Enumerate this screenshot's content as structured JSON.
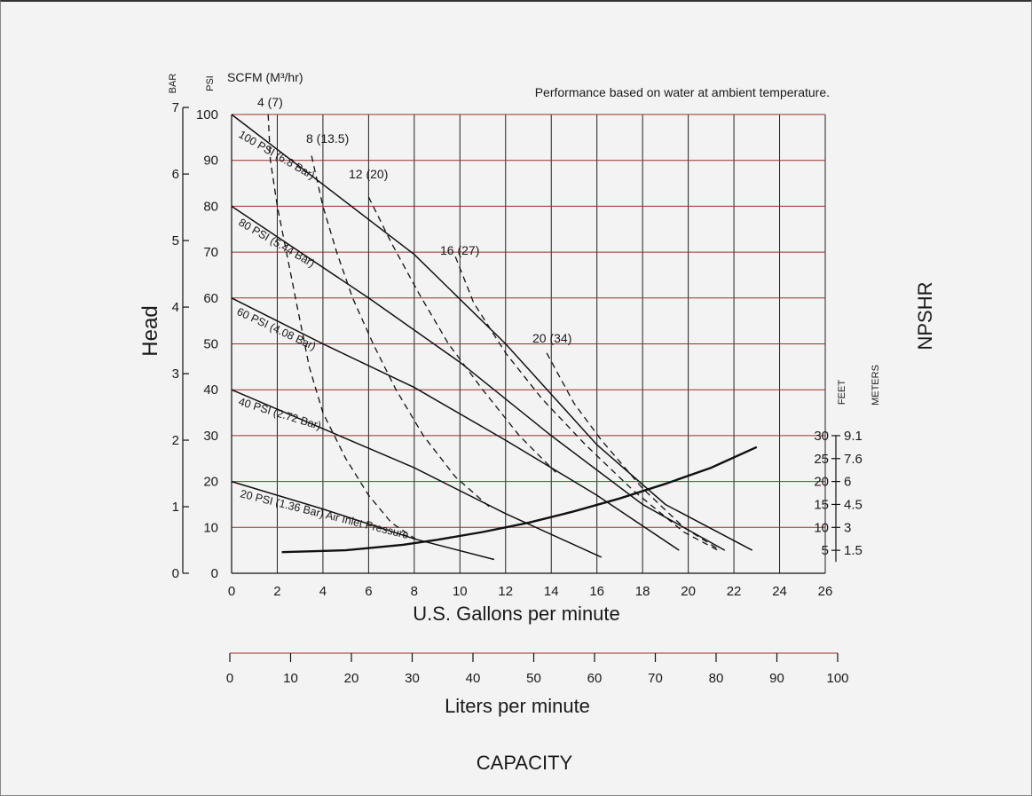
{
  "chart_data": {
    "type": "line",
    "note": "Performance based on water at ambient temperature.",
    "xlabel": "U.S. Gallons per minute",
    "x2label": "Liters per minute",
    "footer": "CAPACITY",
    "ylabel": "Head",
    "y2label": "NPSHR",
    "unit_bar": "BAR",
    "unit_psi": "PSI",
    "unit_scfm": "SCFM (M³/hr)",
    "unit_feet": "FEET",
    "unit_meters": "METERS",
    "xlim": [
      0,
      26
    ],
    "ylim": [
      0,
      100
    ],
    "x_ticks": [
      0,
      2,
      4,
      6,
      8,
      10,
      12,
      14,
      16,
      18,
      20,
      22,
      24,
      26
    ],
    "y_ticks": [
      0,
      10,
      20,
      30,
      40,
      50,
      60,
      70,
      80,
      90,
      100
    ],
    "bar_ticks": [
      0,
      1,
      2,
      3,
      4,
      5,
      6,
      7
    ],
    "lpm_ticks": [
      0,
      10,
      20,
      30,
      40,
      50,
      60,
      70,
      80,
      90,
      100
    ],
    "npshr_ticks": [
      {
        "feet": "30",
        "meters": "9.1",
        "psi": 30
      },
      {
        "feet": "25",
        "meters": "7.6",
        "psi": 25
      },
      {
        "feet": "20",
        "meters": "6",
        "psi": 20
      },
      {
        "feet": "15",
        "meters": "4.5",
        "psi": 15
      },
      {
        "feet": "10",
        "meters": "3",
        "psi": 10
      },
      {
        "feet": "5",
        "meters": "1.5",
        "psi": 5
      }
    ],
    "pressure_curves": [
      {
        "name": "100 PSI (6.8 Bar)",
        "points": [
          [
            0,
            100
          ],
          [
            8,
            69.5
          ],
          [
            12,
            50
          ],
          [
            16,
            28
          ],
          [
            19,
            15
          ],
          [
            22.8,
            5
          ]
        ]
      },
      {
        "name": "80 PSI (5.44 Bar)",
        "points": [
          [
            0,
            80
          ],
          [
            6,
            60
          ],
          [
            10,
            46
          ],
          [
            14,
            30
          ],
          [
            18,
            15
          ],
          [
            21.6,
            5
          ]
        ]
      },
      {
        "name": "60 PSI (4.08 Bar)",
        "points": [
          [
            0,
            60
          ],
          [
            4,
            50
          ],
          [
            8,
            40.5
          ],
          [
            12,
            29
          ],
          [
            16,
            17
          ],
          [
            19.6,
            5
          ]
        ]
      },
      {
        "name": "40 PSI (2.72 Bar)",
        "points": [
          [
            0,
            40
          ],
          [
            4,
            31.5
          ],
          [
            8,
            23
          ],
          [
            12,
            13
          ],
          [
            16.2,
            3.5
          ]
        ]
      },
      {
        "name": "20 PSI (1.36 Bar) Air Inlet Pressure",
        "points": [
          [
            0,
            20
          ],
          [
            4,
            14
          ],
          [
            8,
            7.5
          ],
          [
            11.5,
            3
          ]
        ]
      }
    ],
    "air_curves": [
      {
        "name": "4 (7)",
        "points": [
          [
            1.6,
            100
          ],
          [
            1.7,
            90
          ],
          [
            2.0,
            80
          ],
          [
            2.4,
            70
          ],
          [
            2.8,
            60
          ],
          [
            3.4,
            45
          ],
          [
            4.0,
            35
          ],
          [
            5.0,
            25
          ],
          [
            6.0,
            17
          ],
          [
            7.0,
            11
          ],
          [
            8.2,
            7
          ]
        ]
      },
      {
        "name": "8 (13.5)",
        "points": [
          [
            3.5,
            91
          ],
          [
            4.0,
            80
          ],
          [
            4.6,
            70
          ],
          [
            5.3,
            60
          ],
          [
            6.2,
            50
          ],
          [
            7.2,
            40
          ],
          [
            8.4,
            30
          ],
          [
            9.8,
            21
          ],
          [
            11.4,
            14
          ]
        ]
      },
      {
        "name": "12 (20)",
        "points": [
          [
            6.0,
            82
          ],
          [
            7.0,
            72
          ],
          [
            8.2,
            61
          ],
          [
            9.5,
            50
          ],
          [
            11.0,
            40
          ],
          [
            12.6,
            30
          ],
          [
            14.2,
            22
          ]
        ]
      },
      {
        "name": "16 (27)",
        "points": [
          [
            9.8,
            69
          ],
          [
            10.6,
            59
          ],
          [
            12.0,
            48
          ],
          [
            13.6,
            38
          ],
          [
            15.5,
            28
          ],
          [
            17.6,
            18
          ],
          [
            19.8,
            9
          ],
          [
            21.3,
            5
          ]
        ]
      },
      {
        "name": "20 (34)",
        "points": [
          [
            13.8,
            48
          ],
          [
            15.0,
            37
          ],
          [
            16.2,
            29
          ],
          [
            18.0,
            18.5
          ],
          [
            19.8,
            10
          ],
          [
            21.4,
            5
          ]
        ]
      }
    ],
    "npshr_curve": {
      "name": "NPSHR",
      "points": [
        [
          2.2,
          4.6
        ],
        [
          5,
          5
        ],
        [
          7.5,
          6.2
        ],
        [
          9,
          7.3
        ],
        [
          11,
          9
        ],
        [
          13,
          11
        ],
        [
          15,
          13.5
        ],
        [
          17,
          16.3
        ],
        [
          19,
          19.5
        ],
        [
          21,
          23
        ],
        [
          23,
          27.5
        ]
      ]
    }
  }
}
